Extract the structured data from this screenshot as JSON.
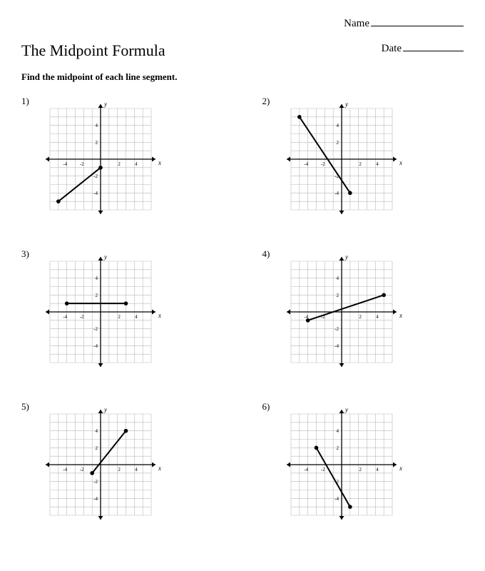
{
  "header": {
    "name_label": "Name",
    "date_label": "Date"
  },
  "title": "The Midpoint Formula",
  "instructions": "Find the midpoint of each line segment.",
  "chart_style": {
    "xlim": [
      -6,
      6
    ],
    "ylim": [
      -6,
      6
    ],
    "grid_color": "#b9b9b9",
    "axis_color": "#000000",
    "line_color": "#000000",
    "point_color": "#000000",
    "background_color": "#ffffff",
    "tick_labels_x": [
      -4,
      -2,
      2,
      4
    ],
    "tick_labels_y": [
      -4,
      -2,
      2,
      4
    ],
    "axis_label_x": "x",
    "axis_label_y": "y",
    "label_fontsize": 9,
    "tick_fontsize": 7,
    "line_width": 2,
    "point_radius": 2.8,
    "svg_size": 170
  },
  "problems": [
    {
      "number": "1)",
      "p1": [
        -5,
        -5
      ],
      "p2": [
        0,
        -1
      ]
    },
    {
      "number": "2)",
      "p1": [
        -5,
        5
      ],
      "p2": [
        1,
        -4
      ]
    },
    {
      "number": "3)",
      "p1": [
        -4,
        1
      ],
      "p2": [
        3,
        1
      ]
    },
    {
      "number": "4)",
      "p1": [
        -4,
        -1
      ],
      "p2": [
        5,
        2
      ]
    },
    {
      "number": "5)",
      "p1": [
        -1,
        -1
      ],
      "p2": [
        3,
        4
      ]
    },
    {
      "number": "6)",
      "p1": [
        -3,
        2
      ],
      "p2": [
        1,
        -5
      ]
    }
  ]
}
